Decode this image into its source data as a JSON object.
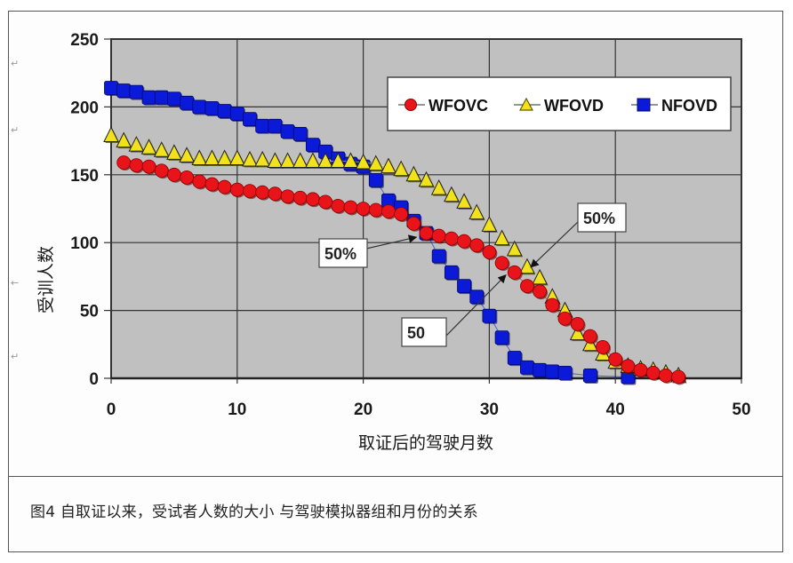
{
  "caption": "图4  自取证以来，受试者人数的大小 与驾驶模拟器组和月份的关系",
  "colors": {
    "plot_background": "#c0c0c0",
    "grid": "#333333",
    "WFOVC": "#e8141a",
    "WFOVD": "#f2e21c",
    "NFOVD": "#0a1ad8"
  },
  "annotations": [
    {
      "label": "50%",
      "target_series": "WFOVC",
      "target_x": 24,
      "target_y": 104
    },
    {
      "label": "50%",
      "target_series": "WFOVD",
      "target_x": 33.5,
      "target_y": 80
    },
    {
      "label": "50",
      "target_series": "NFOVD",
      "target_x": 31,
      "target_y": 75
    }
  ],
  "chart_data": {
    "type": "scatter",
    "title": "",
    "xlabel": "取证后的驾驶月数",
    "ylabel": "受训人数",
    "xlim": [
      0,
      50
    ],
    "ylim": [
      0,
      250
    ],
    "xticks": [
      0,
      10,
      20,
      30,
      40,
      50
    ],
    "yticks": [
      0,
      50,
      100,
      150,
      200,
      250
    ],
    "grid": true,
    "legend_position": "upper right",
    "legend": [
      "WFOVC",
      "WFOVD",
      "NFOVD"
    ],
    "series": [
      {
        "name": "WFOVC",
        "marker": "circle",
        "x": [
          1,
          2,
          3,
          4,
          5,
          6,
          7,
          8,
          9,
          10,
          11,
          12,
          13,
          14,
          15,
          16,
          17,
          18,
          19,
          20,
          21,
          22,
          23,
          24,
          25,
          26,
          27,
          28,
          29,
          30,
          31,
          32,
          33,
          34,
          35,
          36,
          37,
          38,
          39,
          40,
          41,
          42,
          43,
          44,
          45
        ],
        "y": [
          159,
          157,
          156,
          153,
          150,
          148,
          145,
          143,
          141,
          139,
          138,
          137,
          136,
          134,
          133,
          132,
          130,
          127,
          126,
          125,
          124,
          123,
          121,
          114,
          107,
          105,
          103,
          101,
          98,
          93,
          85,
          78,
          68,
          64,
          54,
          44,
          40,
          31,
          23,
          14,
          9,
          6,
          4,
          2,
          1
        ]
      },
      {
        "name": "WFOVD",
        "marker": "triangle",
        "x": [
          0,
          1,
          2,
          3,
          4,
          5,
          6,
          7,
          8,
          9,
          10,
          11,
          12,
          13,
          14,
          15,
          16,
          17,
          18,
          19,
          20,
          21,
          22,
          23,
          24,
          25,
          26,
          27,
          28,
          29,
          30,
          31,
          32,
          33,
          34,
          35,
          36,
          37,
          38,
          39,
          40,
          41,
          42,
          43,
          44,
          45
        ],
        "y": [
          179,
          175,
          172,
          170,
          168,
          166,
          164,
          162,
          162,
          162,
          162,
          161,
          161,
          160,
          160,
          160,
          160,
          160,
          160,
          160,
          159,
          158,
          156,
          154,
          150,
          146,
          140,
          135,
          130,
          122,
          113,
          103,
          95,
          82,
          74,
          60,
          50,
          33,
          25,
          18,
          12,
          9,
          7,
          6,
          4,
          2
        ]
      },
      {
        "name": "NFOVD",
        "marker": "square",
        "x": [
          0,
          1,
          2,
          3,
          4,
          5,
          6,
          7,
          8,
          9,
          10,
          11,
          12,
          13,
          14,
          15,
          16,
          17,
          18,
          19,
          20,
          21,
          22,
          23,
          24,
          25,
          26,
          27,
          28,
          29,
          30,
          31,
          32,
          33,
          34,
          35,
          36,
          38,
          41
        ],
        "y": [
          214,
          212,
          211,
          207,
          207,
          206,
          203,
          200,
          199,
          197,
          195,
          191,
          186,
          186,
          182,
          180,
          172,
          167,
          162,
          158,
          156,
          146,
          131,
          126,
          116,
          107,
          90,
          78,
          68,
          60,
          46,
          30,
          15,
          8,
          6,
          5,
          4,
          2,
          1
        ]
      }
    ]
  },
  "legend": {
    "items": [
      {
        "label": "WFOVC"
      },
      {
        "label": "WFOVD"
      },
      {
        "label": "NFOVD"
      }
    ]
  }
}
